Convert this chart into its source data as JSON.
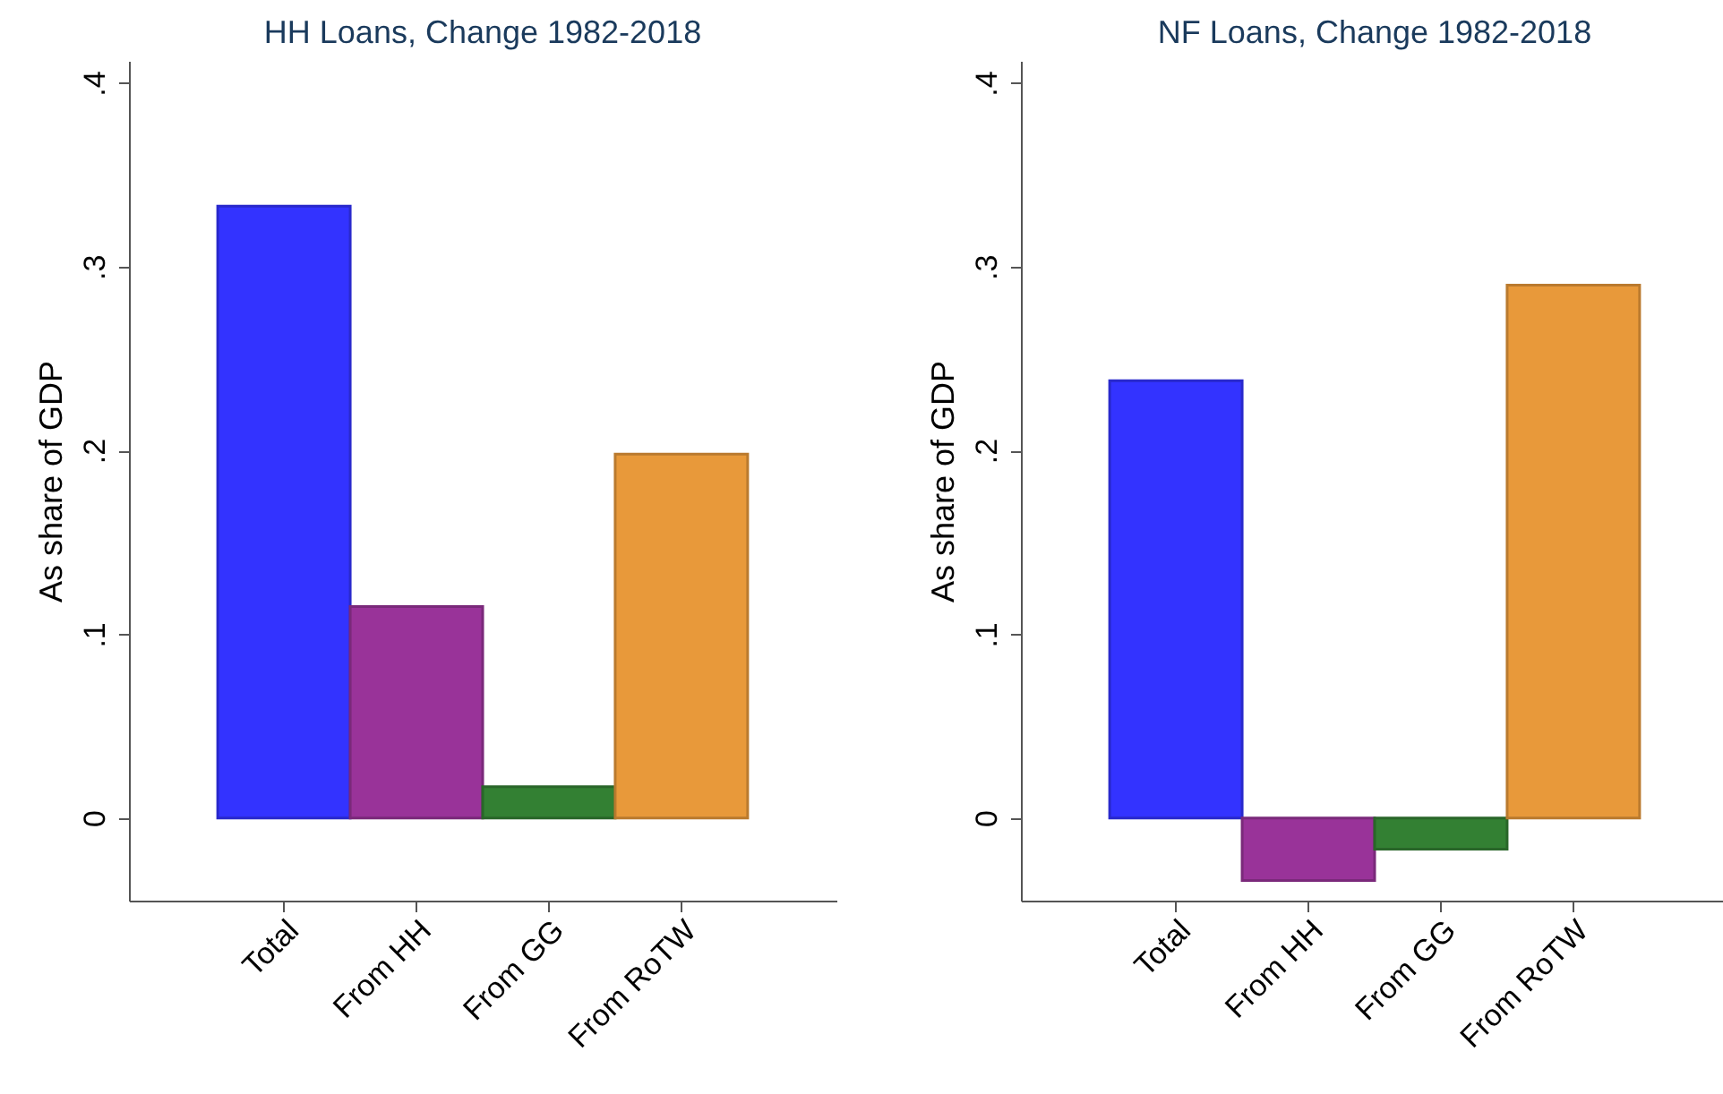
{
  "chart_data": [
    {
      "type": "bar",
      "title": "HH Loans, Change 1982-2018",
      "ylabel": "As share of GDP",
      "categories": [
        "Total",
        "From HH",
        "From GG",
        "From RoTW"
      ],
      "values": [
        0.333,
        0.115,
        0.017,
        0.198
      ],
      "colors": [
        "#3333ff",
        "#993399",
        "#338033",
        "#e8993a"
      ],
      "ylim": [
        -0.045,
        0.412
      ],
      "yticks": [
        0,
        {
          "value": 0.1,
          "label": ".1"
        },
        {
          "value": 0.2,
          "label": ".2"
        },
        {
          "value": 0.3,
          "label": ".3"
        },
        {
          "value": 0.4,
          "label": ".4"
        }
      ],
      "grid": false,
      "legend": false
    },
    {
      "type": "bar",
      "title": "NF Loans, Change 1982-2018",
      "ylabel": "As share of GDP",
      "categories": [
        "Total",
        "From HH",
        "From GG",
        "From RoTW"
      ],
      "values": [
        0.238,
        -0.034,
        -0.017,
        0.29
      ],
      "colors": [
        "#3333ff",
        "#993399",
        "#338033",
        "#e8993a"
      ],
      "ylim": [
        -0.045,
        0.412
      ],
      "yticks": [
        0,
        {
          "value": 0.1,
          "label": ".1"
        },
        {
          "value": 0.2,
          "label": ".2"
        },
        {
          "value": 0.3,
          "label": ".3"
        },
        {
          "value": 0.4,
          "label": ".4"
        }
      ],
      "grid": false,
      "legend": false
    }
  ]
}
